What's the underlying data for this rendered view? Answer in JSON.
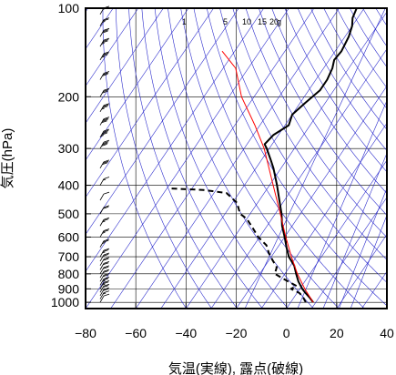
{
  "chart_data": {
    "type": "line",
    "title": "",
    "xlabel": "気温(実線), 露点(破線)",
    "ylabel": "気圧(hPa)",
    "xlim": [
      -80,
      40
    ],
    "ylim": [
      1050,
      100
    ],
    "y_scale": "log",
    "x_ticks": [
      "−80",
      "−60",
      "−40",
      "−20",
      "0",
      "20",
      "40"
    ],
    "x_tick_values": [
      -80,
      -60,
      -40,
      -20,
      0,
      20,
      40
    ],
    "y_ticks": [
      "100",
      "200",
      "300",
      "400",
      "500",
      "600",
      "700",
      "800",
      "900",
      "1000"
    ],
    "y_tick_values": [
      100,
      200,
      300,
      400,
      500,
      600,
      700,
      800,
      900,
      1000
    ],
    "grid": true,
    "skew_deg_per_decade": 79.3,
    "mixing_ratio_labels": [
      "1",
      "5",
      "10",
      "15",
      "20",
      "g"
    ],
    "colors": {
      "isotherm_grid": "#2a2acc",
      "parcel": "#ff0000",
      "temperature": "#000000",
      "dewpoint": "#000000",
      "frame": "#000000"
    },
    "series": [
      {
        "style": "solid",
        "points": [
          [
            1000,
            9.0
          ],
          [
            960,
            6.0
          ],
          [
            925,
            3.0
          ],
          [
            900,
            1.0
          ],
          [
            850,
            -2.5
          ],
          [
            800,
            -5.5
          ],
          [
            750,
            -8.5
          ],
          [
            700,
            -13.0
          ],
          [
            650,
            -16.5
          ],
          [
            600,
            -20.0
          ],
          [
            550,
            -24.0
          ],
          [
            500,
            -27.5
          ],
          [
            450,
            -32.0
          ],
          [
            400,
            -37.0
          ],
          [
            350,
            -43.0
          ],
          [
            330,
            -46.0
          ],
          [
            300,
            -51.0
          ],
          [
            290,
            -53.0
          ],
          [
            270,
            -52.0
          ],
          [
            250,
            -48.5
          ],
          [
            230,
            -50.0
          ],
          [
            210,
            -48.0
          ],
          [
            190,
            -45.5
          ],
          [
            175,
            -45.5
          ],
          [
            160,
            -46.5
          ],
          [
            150,
            -48.0
          ],
          [
            140,
            -47.5
          ],
          [
            125,
            -48.5
          ],
          [
            115,
            -50.0
          ],
          [
            108,
            -52.0
          ],
          [
            100,
            -53.0
          ]
        ]
      },
      {
        "style": "dashed",
        "points": [
          [
            1000,
            6.0
          ],
          [
            960,
            3.5
          ],
          [
            930,
            1.0
          ],
          [
            900,
            -3.5
          ],
          [
            880,
            -2.0
          ],
          [
            860,
            -5.0
          ],
          [
            830,
            -9.5
          ],
          [
            800,
            -14.0
          ],
          [
            760,
            -15.0
          ],
          [
            720,
            -18.5
          ],
          [
            680,
            -22.0
          ],
          [
            640,
            -25.0
          ],
          [
            600,
            -30.5
          ],
          [
            560,
            -35.0
          ],
          [
            520,
            -40.0
          ],
          [
            500,
            -44.0
          ],
          [
            480,
            -46.0
          ],
          [
            460,
            -48.0
          ],
          [
            440,
            -52.0
          ],
          [
            425,
            -55.0
          ],
          [
            415,
            -65.0
          ],
          [
            410,
            -79.0
          ]
        ]
      },
      {
        "style": "parcel",
        "points": [
          [
            1000,
            9.0
          ],
          [
            900,
            2.0
          ],
          [
            800,
            -5.0
          ],
          [
            700,
            -12.0
          ],
          [
            600,
            -19.5
          ],
          [
            500,
            -28.0
          ],
          [
            400,
            -38.5
          ],
          [
            300,
            -52.0
          ],
          [
            250,
            -62.0
          ],
          [
            200,
            -75.0
          ],
          [
            160,
            -85.0
          ],
          [
            140,
            -95.0
          ]
        ]
      }
    ],
    "wind_barbs": {
      "pressures": [
        1000,
        975,
        950,
        925,
        900,
        875,
        850,
        825,
        800,
        775,
        750,
        725,
        700,
        650,
        600,
        550,
        500,
        450,
        400,
        350,
        300,
        275,
        250,
        225,
        200,
        175,
        150,
        135,
        125,
        115,
        105
      ],
      "speeds_kt": [
        10,
        15,
        20,
        20,
        25,
        25,
        20,
        20,
        20,
        20,
        20,
        20,
        25,
        25,
        25,
        25,
        20,
        10,
        15,
        30,
        40,
        45,
        40,
        35,
        30,
        30,
        35,
        35,
        30,
        25,
        20
      ]
    }
  }
}
